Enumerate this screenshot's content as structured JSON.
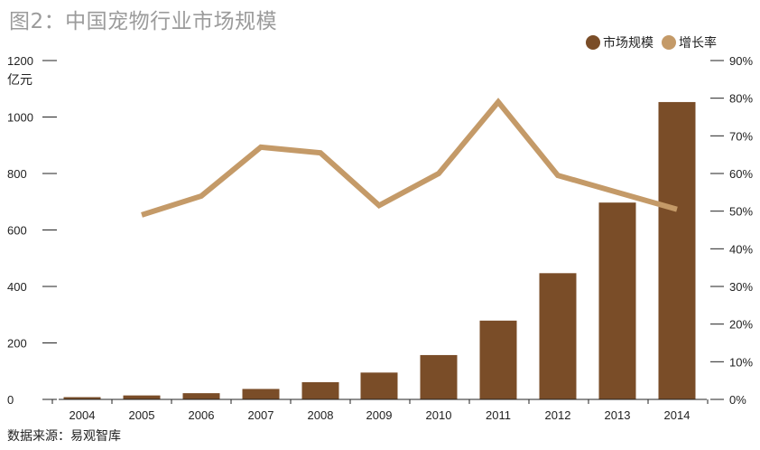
{
  "title": "图2：中国宠物行业市场规模",
  "source": "数据来源：易观智库",
  "colors": {
    "bar": "#7a4d28",
    "line": "#c49a68",
    "axis": "#222222",
    "title": "#9b9b9b"
  },
  "chart_data": {
    "type": "bar",
    "categories": [
      "2004",
      "2005",
      "2006",
      "2007",
      "2008",
      "2009",
      "2010",
      "2011",
      "2012",
      "2013",
      "2014"
    ],
    "series": [
      {
        "name": "市场规模",
        "type": "bar",
        "axis": "left",
        "values": [
          8,
          14,
          22,
          37,
          61,
          95,
          157,
          279,
          447,
          697,
          1053
        ]
      },
      {
        "name": "增长率",
        "type": "line",
        "axis": "right",
        "values": [
          null,
          0.49,
          0.54,
          0.67,
          0.655,
          0.515,
          0.6,
          0.79,
          0.595,
          0.55,
          0.505
        ]
      }
    ],
    "ylabel": "亿元",
    "ylim": [
      0,
      1200
    ],
    "yticks": [
      "0",
      "200",
      "400",
      "600",
      "800",
      "1000",
      "1200"
    ],
    "y2lim": [
      0,
      0.9
    ],
    "y2ticks": [
      "0%",
      "10%",
      "20%",
      "30%",
      "40%",
      "50%",
      "60%",
      "70%",
      "80%",
      "90%"
    ],
    "legend": "top-right",
    "grid": false
  }
}
